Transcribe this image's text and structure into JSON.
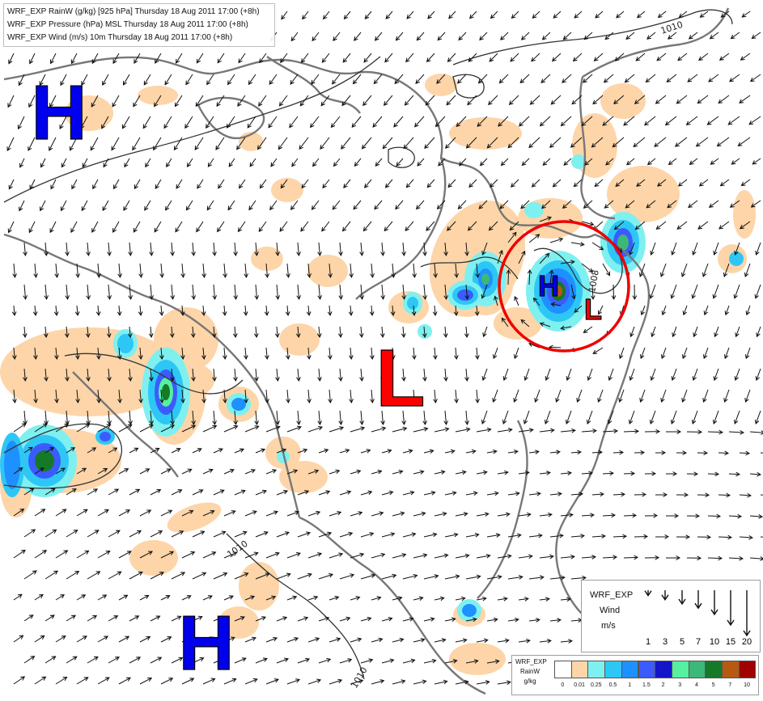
{
  "header": {
    "lines": [
      "WRF_EXP RainW (g/kg) [925 hPa] Thursday 18 Aug 2011 17:00 (+8h)",
      "WRF_EXP Pressure (hPa) MSL Thursday 18 Aug 2011 17:00 (+8h)",
      "WRF_EXP Wind (m/s) 10m Thursday 18 Aug 2011 17:00 (+8h)"
    ]
  },
  "pressure_centers": [
    {
      "label": "H",
      "kind": "high",
      "color": "#0000ee"
    },
    {
      "label": "H",
      "kind": "high",
      "color": "#0000ee"
    },
    {
      "label": "H",
      "kind": "high",
      "color": "#0000ee"
    },
    {
      "label": "L",
      "kind": "low",
      "color": "#ff0000"
    },
    {
      "label": "L",
      "kind": "low",
      "color": "#ff0000"
    }
  ],
  "isobar_labels": [
    "1010",
    "1010",
    "1010",
    "1008"
  ],
  "highlight": {
    "color": "#ee0000",
    "description": "red-circle-annotation"
  },
  "wind_legend": {
    "title": "WRF_EXP",
    "subtitle": "Wind",
    "unit": "m/s",
    "speeds": [
      "1",
      "3",
      "5",
      "7",
      "10",
      "15",
      "20"
    ]
  },
  "color_legend": {
    "title": "WRF_EXP",
    "variable": "RainW",
    "unit": "g/kg",
    "levels": [
      "0",
      "0.01",
      "0.25",
      "0.5",
      "1",
      "1.5",
      "2",
      "3",
      "4",
      "5",
      "7",
      "10"
    ],
    "colors": [
      "#ffffff",
      "#fdd5a8",
      "#7ff0f0",
      "#2ec7f5",
      "#1e90ff",
      "#3b5bff",
      "#1414c8",
      "#55f0a0",
      "#3cb878",
      "#157a28",
      "#b65a12",
      "#a00000"
    ]
  }
}
